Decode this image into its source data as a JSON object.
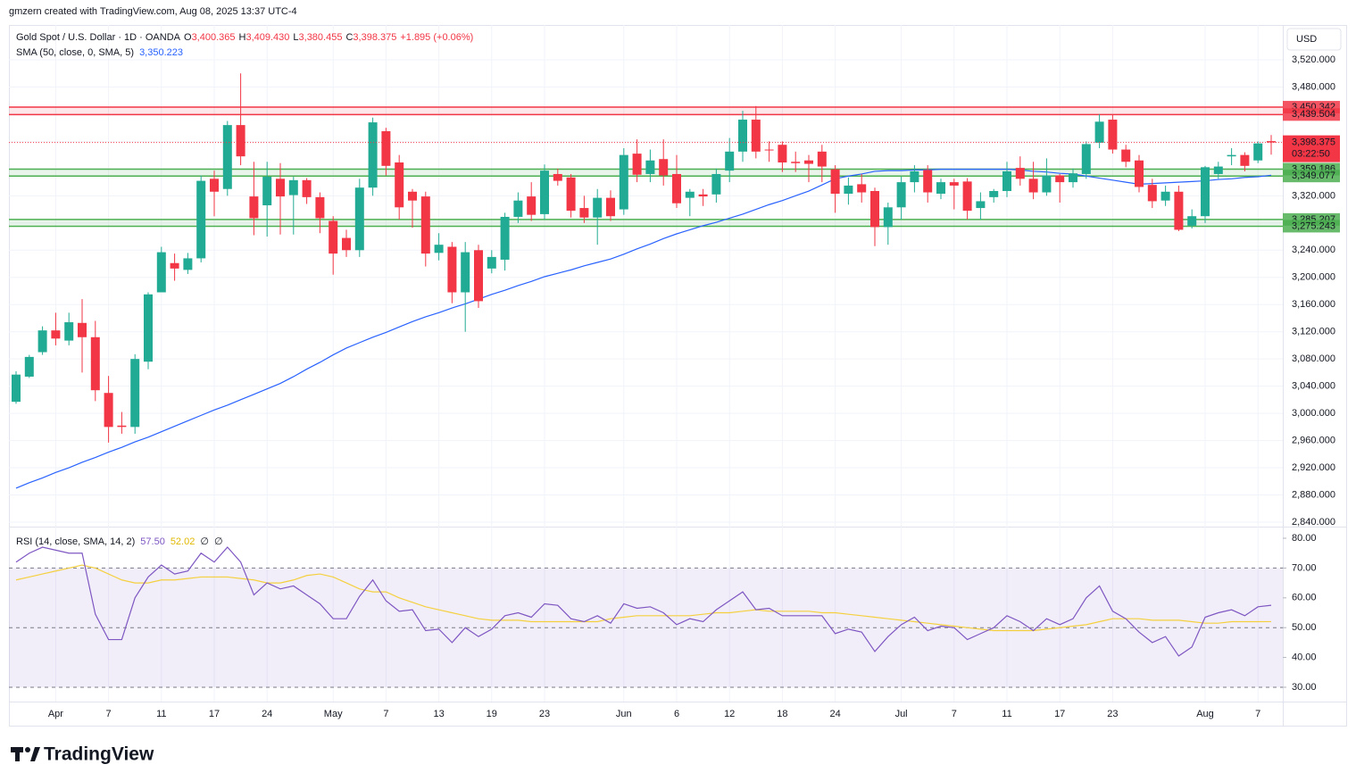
{
  "header": "gmzern created with TradingView.com, Aug 08, 2025 13:37 UTC-4",
  "footer": "TradingView",
  "chart_data": {
    "type": "candlestick",
    "title": "Gold Spot / U.S. Dollar · 1D · OANDA",
    "legend_items": [
      {
        "key": "O",
        "text": "3,400.365"
      },
      {
        "key": "H",
        "text": "3,409.430"
      },
      {
        "key": "L",
        "text": "3,380.455"
      },
      {
        "key": "C",
        "text": "3,398.375"
      }
    ],
    "change": "+1.895 (+0.06%)",
    "currency": "USD",
    "up_color": "#22ab94",
    "down_color": "#f23645",
    "categories": [
      null,
      null,
      null,
      "Apr",
      null,
      null,
      null,
      "7",
      null,
      null,
      null,
      "11",
      null,
      null,
      null,
      "17",
      null,
      null,
      null,
      "24",
      null,
      null,
      null,
      null,
      "May",
      null,
      null,
      null,
      "7",
      null,
      null,
      null,
      "13",
      null,
      null,
      null,
      "19",
      null,
      null,
      null,
      "23",
      null,
      null,
      null,
      null,
      null,
      "Jun",
      null,
      null,
      null,
      "6",
      null,
      null,
      null,
      "12",
      null,
      null,
      null,
      "18",
      null,
      null,
      null,
      "24",
      null,
      null,
      null,
      null,
      "Jul",
      null,
      null,
      null,
      "7",
      null,
      null,
      null,
      "11",
      null,
      null,
      null,
      "17",
      null,
      null,
      null,
      "23",
      null,
      null,
      null,
      null,
      null,
      null,
      "Aug",
      null,
      null,
      null,
      "7",
      null
    ],
    "open": [
      3017,
      3054,
      3090,
      3122,
      3107,
      3133,
      3112,
      3030,
      2982,
      2980,
      3076,
      3178,
      3221,
      3211,
      3228,
      3345,
      3330,
      3424,
      3319,
      3306,
      3345,
      3321,
      3343,
      3318,
      3283,
      3258,
      3240,
      3332,
      3415,
      3369,
      3326,
      3319,
      3236,
      3245,
      3178,
      3240,
      3213,
      3226,
      3289,
      3319,
      3293,
      3352,
      3347,
      3302,
      3288,
      3317,
      3300,
      3382,
      3352,
      3374,
      3352,
      3317,
      3322,
      3322,
      3357,
      3385,
      3432,
      3388,
      3395,
      3370,
      3372,
      3385,
      3359,
      3323,
      3337,
      3327,
      3274,
      3303,
      3340,
      3358,
      3323,
      3340,
      3341,
      3302,
      3318,
      3327,
      3361,
      3345,
      3325,
      3350,
      3340,
      3352,
      3398,
      3432,
      3388,
      3372,
      3336,
      3313,
      3326,
      3276,
      3290,
      3352,
      3378,
      3380,
      3372,
      3400.365
    ],
    "high": [
      3062,
      3086,
      3128,
      3148,
      3148,
      3168,
      3136,
      3055,
      3002,
      3087,
      3178,
      3245,
      3235,
      3236,
      3350,
      3357,
      3430,
      3500,
      3370,
      3370,
      3368,
      3348,
      3346,
      3325,
      3290,
      3270,
      3345,
      3435,
      3420,
      3380,
      3330,
      3326,
      3265,
      3252,
      3252,
      3248,
      3240,
      3295,
      3325,
      3340,
      3366,
      3360,
      3352,
      3320,
      3330,
      3328,
      3390,
      3403,
      3388,
      3403,
      3380,
      3330,
      3330,
      3360,
      3405,
      3445,
      3452,
      3400,
      3400,
      3385,
      3380,
      3395,
      3365,
      3347,
      3352,
      3332,
      3310,
      3348,
      3365,
      3365,
      3345,
      3345,
      3346,
      3325,
      3330,
      3370,
      3378,
      3370,
      3375,
      3352,
      3360,
      3400,
      3440,
      3440,
      3395,
      3380,
      3345,
      3335,
      3335,
      3300,
      3364,
      3370,
      3390,
      3384,
      3400,
      3409.43
    ],
    "low": [
      3014,
      3052,
      3086,
      3100,
      3100,
      3060,
      3018,
      2957,
      2970,
      2970,
      3065,
      3178,
      3195,
      3205,
      3222,
      3290,
      3320,
      3365,
      3262,
      3260,
      3263,
      3263,
      3308,
      3265,
      3204,
      3230,
      3230,
      3320,
      3350,
      3285,
      3273,
      3216,
      3225,
      3162,
      3120,
      3155,
      3206,
      3210,
      3280,
      3283,
      3285,
      3335,
      3288,
      3280,
      3248,
      3283,
      3292,
      3340,
      3340,
      3335,
      3302,
      3290,
      3305,
      3310,
      3340,
      3370,
      3375,
      3370,
      3355,
      3355,
      3340,
      3340,
      3295,
      3307,
      3310,
      3246,
      3248,
      3285,
      3325,
      3310,
      3315,
      3300,
      3285,
      3285,
      3310,
      3318,
      3335,
      3315,
      3320,
      3310,
      3332,
      3345,
      3390,
      3382,
      3362,
      3325,
      3302,
      3305,
      3268,
      3272,
      3280,
      3345,
      3365,
      3356,
      3368,
      3380.455
    ],
    "close": [
      3057,
      3083,
      3122,
      3110,
      3134,
      3112,
      3034,
      2980,
      2980,
      3080,
      3175,
      3237,
      3213,
      3228,
      3342,
      3326,
      3424,
      3378,
      3287,
      3348,
      3319,
      3343,
      3318,
      3287,
      3235,
      3240,
      3332,
      3428,
      3364,
      3303,
      3313,
      3235,
      3248,
      3178,
      3237,
      3165,
      3230,
      3289,
      3313,
      3292,
      3357,
      3342,
      3298,
      3288,
      3317,
      3290,
      3380,
      3351,
      3372,
      3350,
      3309,
      3326,
      3319,
      3352,
      3385,
      3432,
      3385,
      3387,
      3369,
      3368,
      3367,
      3363,
      3323,
      3335,
      3325,
      3274,
      3303,
      3340,
      3356,
      3325,
      3340,
      3335,
      3298,
      3312,
      3327,
      3356,
      3345,
      3325,
      3350,
      3340,
      3353,
      3396,
      3429,
      3388,
      3370,
      3333,
      3312,
      3326,
      3270,
      3290,
      3362,
      3363,
      3380,
      3364,
      3397,
      3398.375
    ],
    "last_label": "3,398.375",
    "countdown": "03:22:50",
    "sma": {
      "name": "SMA (50, close, 0, SMA, 5)",
      "last_label": "3,350.223",
      "color": "#2962ff",
      "values": [
        2890,
        2898,
        2905,
        2913,
        2920,
        2928,
        2935,
        2943,
        2950,
        2958,
        2965,
        2973,
        2981,
        2989,
        2997,
        3005,
        3012,
        3020,
        3028,
        3036,
        3044,
        3054,
        3065,
        3075,
        3086,
        3096,
        3104,
        3112,
        3119,
        3127,
        3135,
        3142,
        3148,
        3155,
        3161,
        3168,
        3175,
        3181,
        3188,
        3194,
        3201,
        3206,
        3211,
        3217,
        3222,
        3227,
        3234,
        3242,
        3249,
        3257,
        3264,
        3270,
        3276,
        3281,
        3287,
        3293,
        3300,
        3307,
        3313,
        3320,
        3327,
        3336,
        3345,
        3349,
        3352,
        3356,
        3357,
        3357,
        3358,
        3358,
        3359,
        3359,
        3359,
        3359,
        3359,
        3359,
        3358,
        3356,
        3355,
        3353,
        3352,
        3349,
        3346,
        3343,
        3340,
        3337,
        3338,
        3339,
        3340,
        3341,
        3342,
        3344,
        3345,
        3347,
        3348,
        3350.223
      ]
    },
    "zones": [
      {
        "color": "#f23645",
        "values": [
          3450.342,
          3439.504
        ],
        "labels": [
          "3,450.342",
          "3,439.504"
        ]
      },
      {
        "color": "#4caf50",
        "values": [
          3359.186,
          3349.077
        ],
        "labels": [
          "3,359.186",
          "3,349.077"
        ]
      },
      {
        "color": "#4caf50",
        "values": [
          3285.207,
          3275.243
        ],
        "labels": [
          "3,285.207",
          "3,275.243"
        ]
      }
    ],
    "ylim": [
      2833.4,
      3571.2
    ],
    "yticks": [
      {
        "value": 2840,
        "label": "2,840.000"
      },
      {
        "value": 2880,
        "label": "2,880.000"
      },
      {
        "value": 2920,
        "label": "2,920.000"
      },
      {
        "value": 2960,
        "label": "2,960.000"
      },
      {
        "value": 3000,
        "label": "3,000.000"
      },
      {
        "value": 3040,
        "label": "3,040.000"
      },
      {
        "value": 3080,
        "label": "3,080.000"
      },
      {
        "value": 3120,
        "label": "3,120.000"
      },
      {
        "value": 3160,
        "label": "3,160.000"
      },
      {
        "value": 3200,
        "label": "3,200.000"
      },
      {
        "value": 3240,
        "label": "3,240.000"
      },
      {
        "value": 3280,
        "label": "3,280.000"
      },
      {
        "value": 3320,
        "label": "3,320.000"
      },
      {
        "value": 3360,
        "label": "3,360.000"
      },
      {
        "value": 3400,
        "label": "3,400.000"
      },
      {
        "value": 3440,
        "label": "3,440.000"
      },
      {
        "value": 3480,
        "label": "3,480.000"
      },
      {
        "value": 3520,
        "label": "3,520.000"
      }
    ],
    "grid": true,
    "rsi": {
      "name": "RSI (14, close, SMA, 14, 2)",
      "last_label": "57.50",
      "color": "#7e57c2",
      "values": [
        72,
        75,
        77,
        76,
        75,
        75,
        54.5,
        46,
        46,
        60,
        67,
        71,
        68,
        69,
        75,
        72,
        77,
        72,
        61,
        65,
        63,
        64,
        61,
        58,
        53,
        53,
        60.5,
        66,
        59,
        55.5,
        56,
        49,
        49.5,
        45,
        50,
        47,
        49.5,
        54,
        55,
        53.5,
        58,
        57.5,
        53,
        52,
        54,
        51.5,
        58,
        56.5,
        57,
        55,
        51,
        53,
        52,
        56,
        59,
        62,
        56,
        56.5,
        54,
        54,
        54,
        54,
        48,
        49.5,
        48.5,
        42,
        47,
        51,
        53.5,
        49,
        50.5,
        50,
        46,
        48,
        50,
        54,
        52,
        49,
        53,
        51,
        53,
        60,
        64,
        55.5,
        53,
        48.5,
        45,
        47,
        40.5,
        43.5,
        53.5,
        55,
        56,
        54,
        57,
        57.5
      ],
      "ma": {
        "last_label": "52.02",
        "color": "#f4d03f",
        "values": [
          66,
          67,
          68,
          69,
          70,
          71,
          70,
          68,
          66,
          65,
          65,
          66,
          66,
          66.5,
          67,
          67,
          67,
          66.5,
          66,
          65,
          65,
          66,
          67.5,
          68,
          67,
          65,
          63,
          62,
          62,
          60,
          58.5,
          57,
          56,
          55,
          54,
          53,
          52.5,
          52.5,
          52.5,
          52,
          52,
          52,
          52,
          52,
          52,
          53,
          53.5,
          54,
          54,
          54,
          54,
          54,
          54.5,
          55,
          55,
          55.5,
          56,
          55.5,
          55.5,
          55.5,
          55.5,
          55,
          55,
          54.5,
          54,
          53.5,
          53,
          52.5,
          52,
          51.5,
          51,
          50.5,
          50,
          49.5,
          49,
          49,
          49,
          49,
          49.5,
          50,
          50.5,
          51,
          52,
          53,
          53,
          53,
          52.5,
          52.5,
          52.5,
          52,
          51.5,
          51.5,
          52,
          52,
          52,
          52.02
        ]
      },
      "extra_labels": [
        "∅",
        "∅"
      ],
      "bands": [
        70,
        50,
        30
      ],
      "ylim": [
        25.5,
        83.3
      ],
      "yticks": [
        {
          "value": 30,
          "label": "30.00"
        },
        {
          "value": 40,
          "label": "40.00"
        },
        {
          "value": 50,
          "label": "50.00"
        },
        {
          "value": 60,
          "label": "60.00"
        },
        {
          "value": 70,
          "label": "70.00"
        },
        {
          "value": 80,
          "label": "80.00"
        }
      ]
    }
  }
}
